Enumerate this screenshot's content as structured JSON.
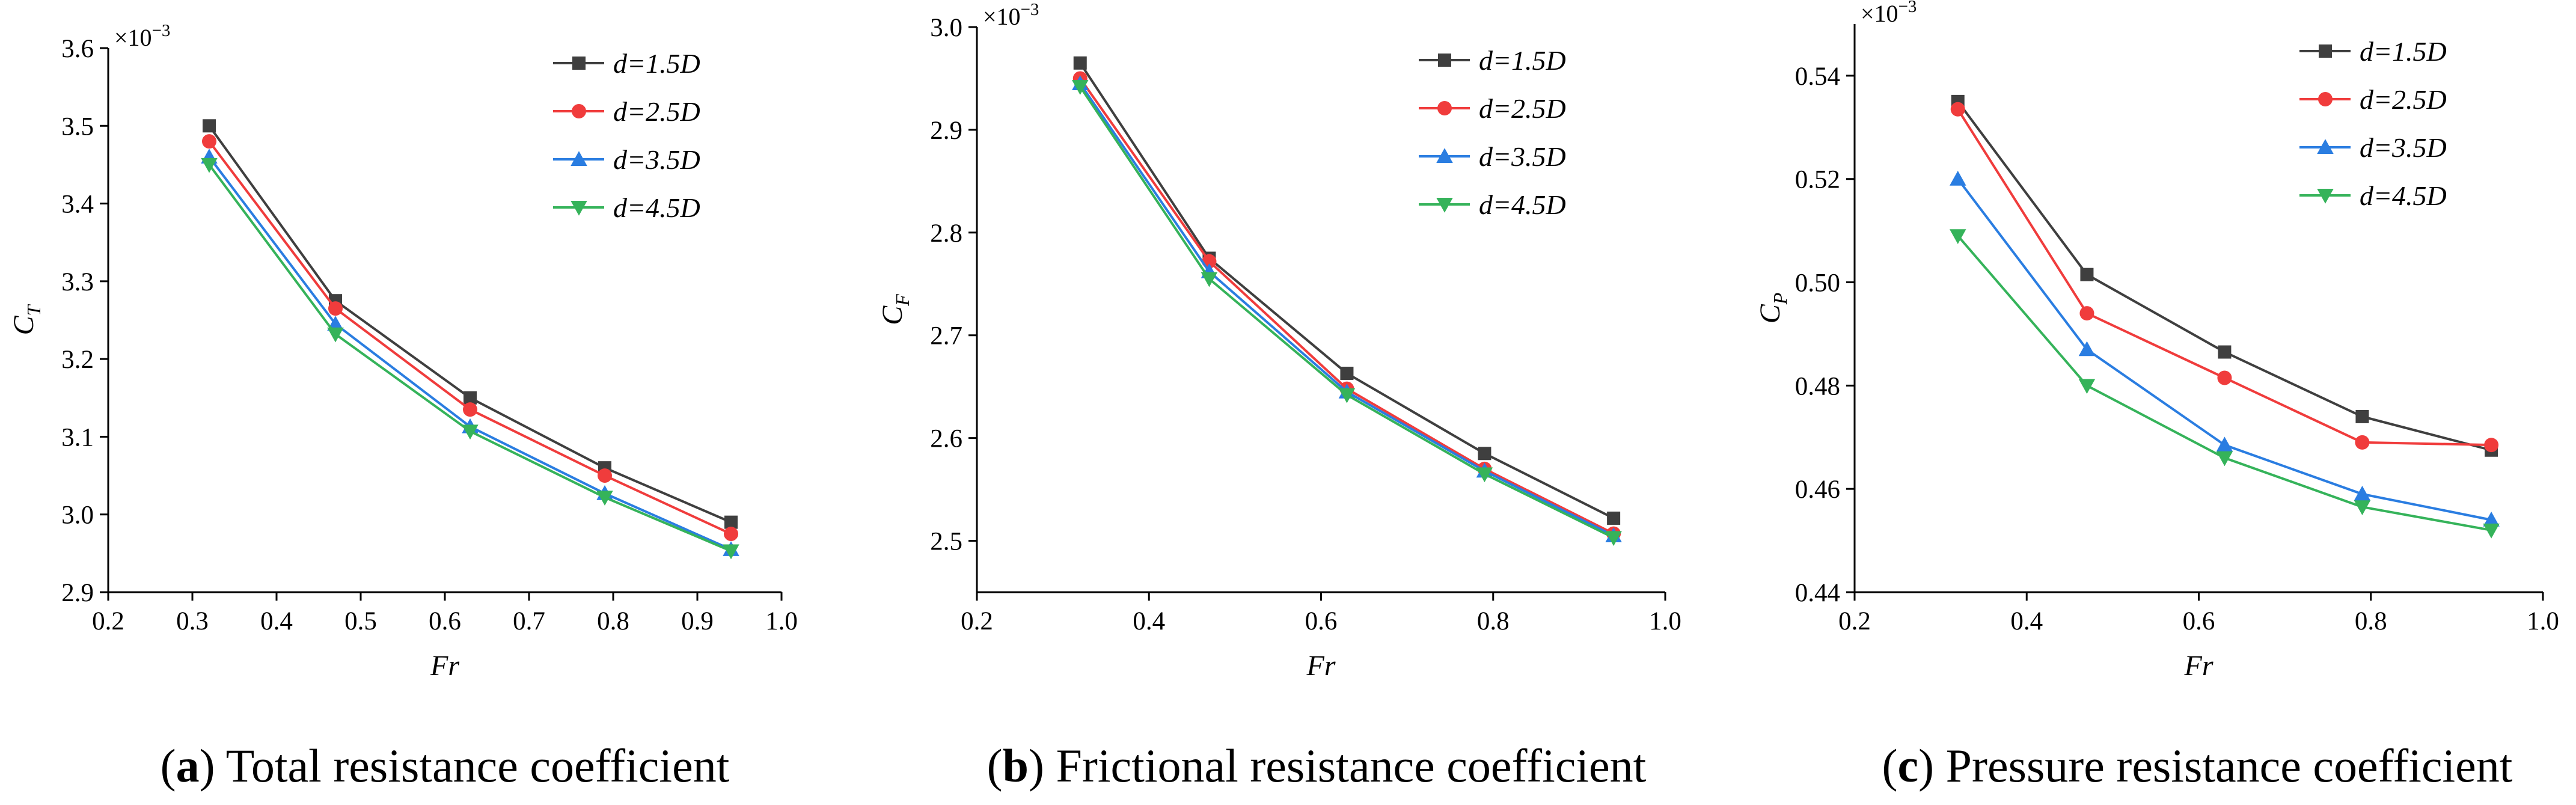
{
  "chart_data": [
    {
      "type": "line",
      "panel_label": "a",
      "caption": "Total resistance coefficient",
      "xlabel": "Fr",
      "ylabel": {
        "base": "C",
        "sub": "T"
      },
      "multiplier": {
        "base": "×10",
        "exp": "−3"
      },
      "xlim": [
        0.2,
        1.0
      ],
      "ylim": [
        2.9,
        3.6
      ],
      "xticks": [
        "0.2",
        "0.3",
        "0.4",
        "0.5",
        "0.6",
        "0.7",
        "0.8",
        "0.9",
        "1.0"
      ],
      "yticks": [
        "2.9",
        "3.0",
        "3.1",
        "3.2",
        "3.3",
        "3.4",
        "3.5",
        "3.6"
      ],
      "x": [
        0.32,
        0.47,
        0.63,
        0.79,
        0.94
      ],
      "series": [
        {
          "name": "d=1.5D",
          "values": [
            3.5,
            3.275,
            3.15,
            3.06,
            2.99
          ]
        },
        {
          "name": "d=2.5D",
          "values": [
            3.48,
            3.265,
            3.135,
            3.05,
            2.975
          ]
        },
        {
          "name": "d=3.5D",
          "values": [
            3.46,
            3.245,
            3.113,
            3.027,
            2.955
          ]
        },
        {
          "name": "d=4.5D",
          "values": [
            3.45,
            3.232,
            3.107,
            3.022,
            2.953
          ]
        }
      ]
    },
    {
      "type": "line",
      "panel_label": "b",
      "caption": "Frictional resistance coefficient",
      "xlabel": "Fr",
      "ylabel": {
        "base": "C",
        "sub": "F"
      },
      "multiplier": {
        "base": "×10",
        "exp": "−3"
      },
      "xlim": [
        0.2,
        1.0
      ],
      "ylim": [
        2.45,
        3.0
      ],
      "xticks": [
        "0.2",
        "0.4",
        "0.6",
        "0.8",
        "1.0"
      ],
      "yticks": [
        "2.5",
        "2.6",
        "2.7",
        "2.8",
        "2.9",
        "3.0"
      ],
      "x": [
        0.32,
        0.47,
        0.63,
        0.79,
        0.94
      ],
      "series": [
        {
          "name": "d=1.5D",
          "values": [
            2.965,
            2.775,
            2.663,
            2.585,
            2.522
          ]
        },
        {
          "name": "d=2.5D",
          "values": [
            2.95,
            2.772,
            2.648,
            2.57,
            2.507
          ]
        },
        {
          "name": "d=3.5D",
          "values": [
            2.945,
            2.762,
            2.645,
            2.568,
            2.505
          ]
        },
        {
          "name": "d=4.5D",
          "values": [
            2.942,
            2.755,
            2.642,
            2.565,
            2.503
          ]
        }
      ]
    },
    {
      "type": "line",
      "panel_label": "c",
      "caption": "Pressure resistance coefficient",
      "xlabel": "Fr",
      "ylabel": {
        "base": "C",
        "sub": "P"
      },
      "multiplier": {
        "base": "×10",
        "exp": "−3"
      },
      "xlim": [
        0.2,
        1.0
      ],
      "ylim": [
        0.44,
        0.55
      ],
      "xticks": [
        "0.2",
        "0.4",
        "0.6",
        "0.8",
        "1.0"
      ],
      "yticks": [
        "0.44",
        "0.46",
        "0.48",
        "0.50",
        "0.52",
        "0.54"
      ],
      "x": [
        0.32,
        0.47,
        0.63,
        0.79,
        0.94
      ],
      "series": [
        {
          "name": "d=1.5D",
          "values": [
            0.535,
            0.5015,
            0.4865,
            0.474,
            0.4675
          ]
        },
        {
          "name": "d=2.5D",
          "values": [
            0.5335,
            0.494,
            0.4815,
            0.469,
            0.4685
          ]
        },
        {
          "name": "d=3.5D",
          "values": [
            0.52,
            0.487,
            0.4685,
            0.459,
            0.454
          ]
        },
        {
          "name": "d=4.5D",
          "values": [
            0.509,
            0.48,
            0.466,
            0.4565,
            0.452
          ]
        }
      ]
    }
  ],
  "series_style": [
    {
      "color": "#3f3f3f",
      "marker": "square"
    },
    {
      "color": "#f03c3c",
      "marker": "circle"
    },
    {
      "color": "#2a7de1",
      "marker": "triangle-up"
    },
    {
      "color": "#35b35a",
      "marker": "triangle-down"
    }
  ]
}
